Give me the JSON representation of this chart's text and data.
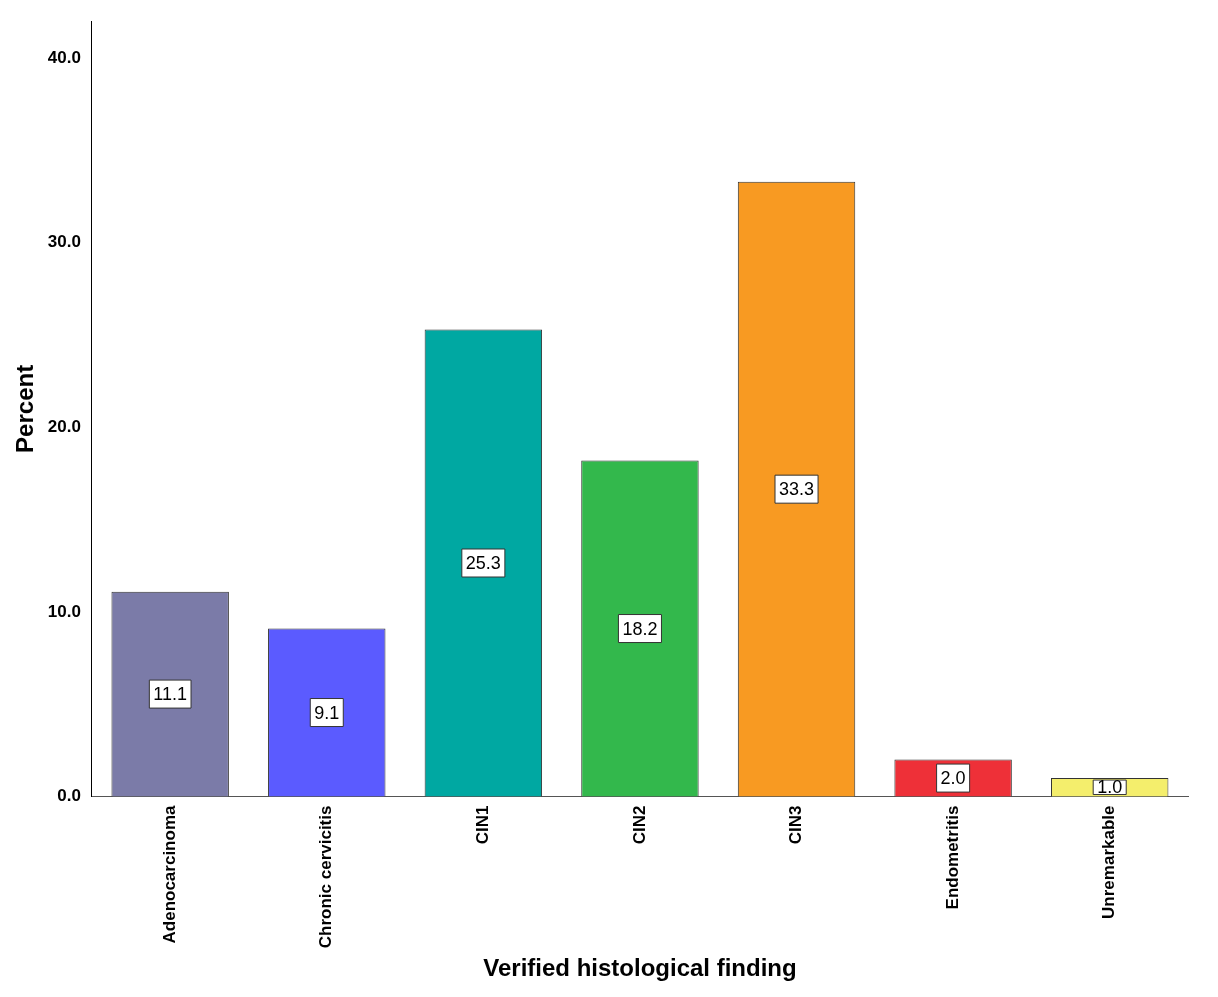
{
  "chart_data": {
    "type": "bar",
    "xlabel": "Verified histological finding",
    "ylabel": "Percent",
    "categories": [
      "Adenocarcinoma",
      "Chronic cervicitis",
      "CIN1",
      "CIN2",
      "CIN3",
      "Endometritis",
      "Unremarkable"
    ],
    "values": [
      11.1,
      9.1,
      25.3,
      18.2,
      33.3,
      2.0,
      1.0
    ],
    "colors": [
      "#7b7ba8",
      "#5b5bff",
      "#00a8a2",
      "#33b84c",
      "#f89a22",
      "#ee3038",
      "#f4ee6c"
    ],
    "ylim": [
      0,
      42
    ],
    "yticks": [
      {
        "value": 0,
        "label": "0.0"
      },
      {
        "value": 10,
        "label": "10.0"
      },
      {
        "value": 20,
        "label": "20.0"
      },
      {
        "value": 30,
        "label": "30.0"
      },
      {
        "value": 40,
        "label": "40.0"
      }
    ],
    "value_labels": [
      "11.1",
      "9.1",
      "25.3",
      "18.2",
      "33.3",
      "2.0",
      "1.0"
    ],
    "grid": false,
    "legend": false
  }
}
